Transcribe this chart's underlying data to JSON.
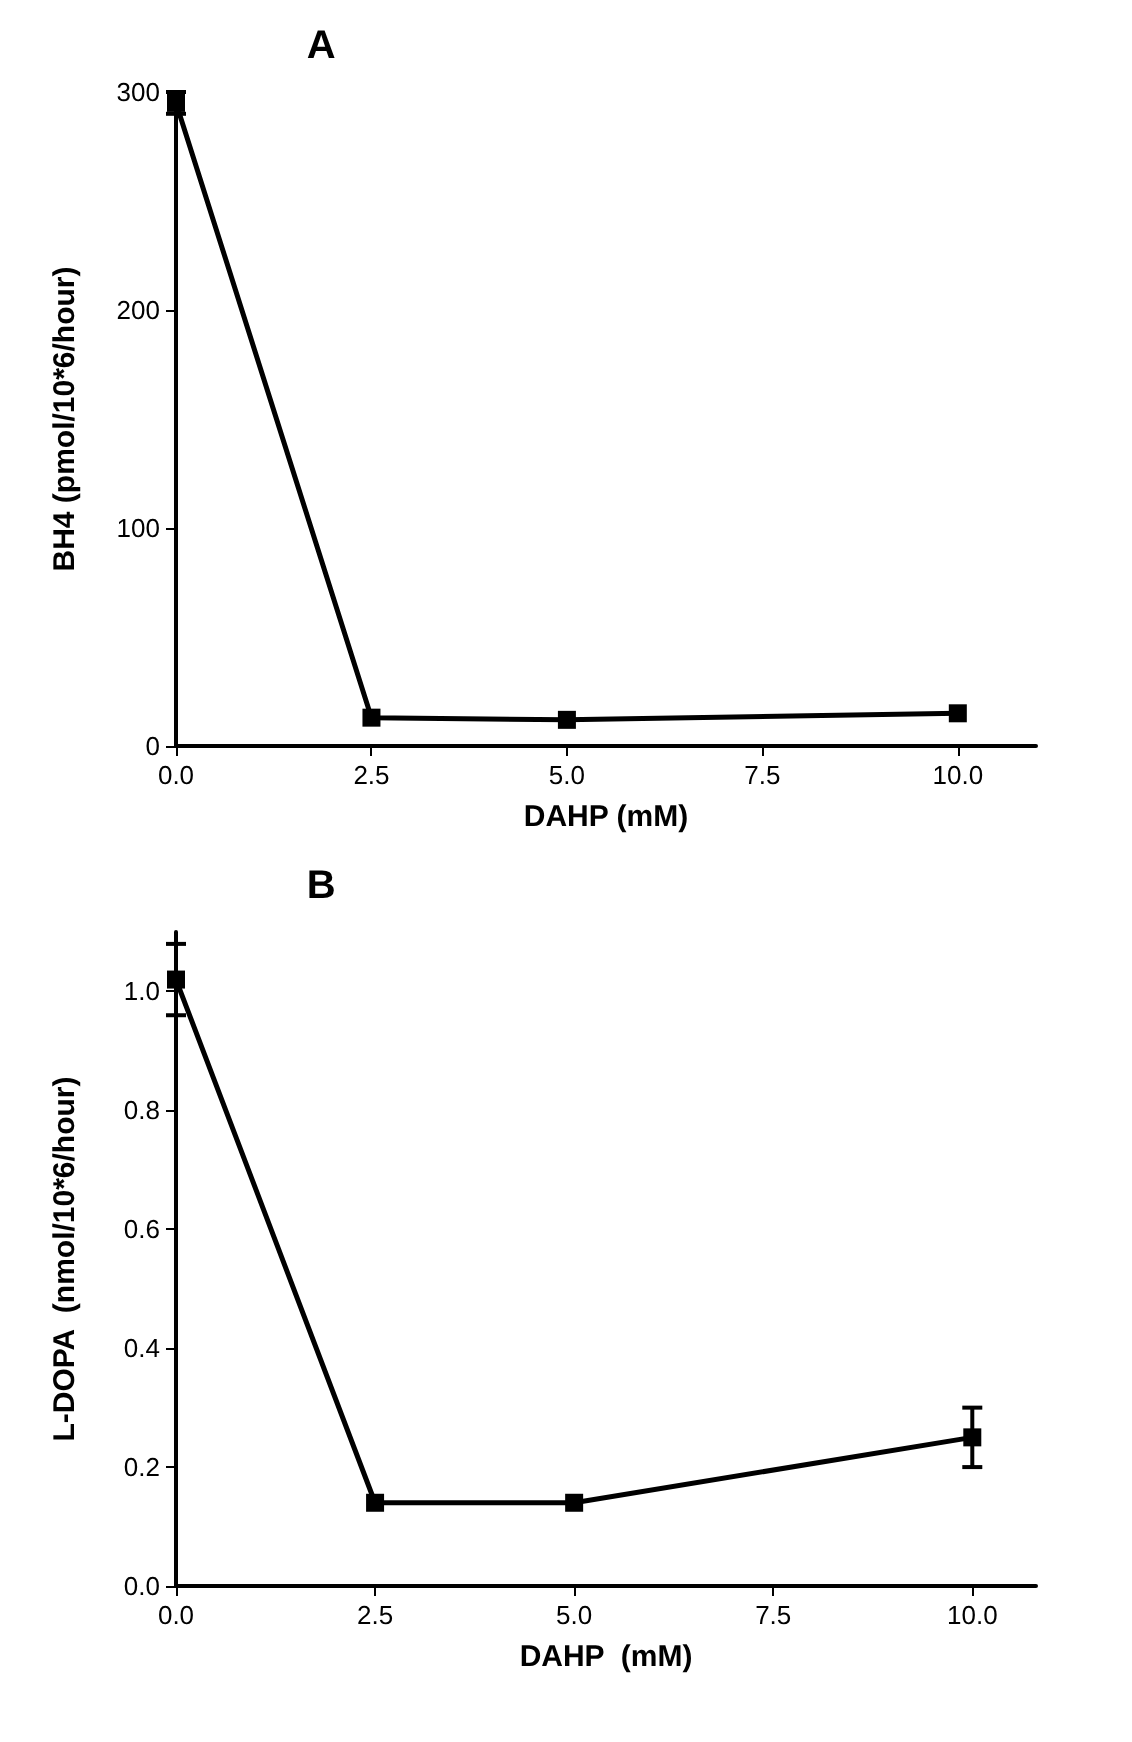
{
  "chart_data": [
    {
      "type": "line",
      "title": "A",
      "xlabel": "DAHP (mM)",
      "ylabel": "BH4 (pmol/10*6/hour)",
      "x": [
        0,
        2.5,
        5,
        10
      ],
      "series": [
        {
          "color": "#000000",
          "values": [
            295,
            13,
            12,
            15
          ],
          "errors": [
            5,
            null,
            null,
            null
          ]
        }
      ],
      "xlim": [
        0,
        11
      ],
      "xticks": [
        {
          "value": 0,
          "label": "0.0"
        },
        {
          "value": 2.5,
          "label": "2.5"
        },
        {
          "value": 5,
          "label": "5.0"
        },
        {
          "value": 7.5,
          "label": "7.5"
        },
        {
          "value": 10,
          "label": "10.0"
        }
      ],
      "ylim": [
        0,
        300
      ],
      "yticks": [
        0,
        100,
        200,
        300
      ],
      "grid": false,
      "marker": "square",
      "line_style": "solid"
    },
    {
      "type": "line",
      "title": "B",
      "xlabel": "DAHP  (mM)",
      "ylabel": "L-DOPA  (nmol/10*6/hour)",
      "x": [
        0,
        2.5,
        5,
        10
      ],
      "series": [
        {
          "color": "#000000",
          "values": [
            1.02,
            0.14,
            0.14,
            0.25
          ],
          "errors": [
            0.06,
            null,
            null,
            0.05
          ]
        }
      ],
      "xlim": [
        0,
        10.8
      ],
      "xticks": [
        {
          "value": 0,
          "label": "0.0"
        },
        {
          "value": 2.5,
          "label": "2.5"
        },
        {
          "value": 5,
          "label": "5.0"
        },
        {
          "value": 7.5,
          "label": "7.5"
        },
        {
          "value": 10,
          "label": "10.0"
        }
      ],
      "ylim": [
        0,
        1.1
      ],
      "yticks": [
        {
          "value": 0,
          "label": "0.0"
        },
        {
          "value": 0.2,
          "label": "0.2"
        },
        {
          "value": 0.4,
          "label": "0.4"
        },
        {
          "value": 0.6,
          "label": "0.6"
        },
        {
          "value": 0.8,
          "label": "0.8"
        },
        {
          "value": 1,
          "label": "1.0"
        }
      ],
      "grid": false,
      "marker": "square",
      "line_style": "solid"
    }
  ]
}
